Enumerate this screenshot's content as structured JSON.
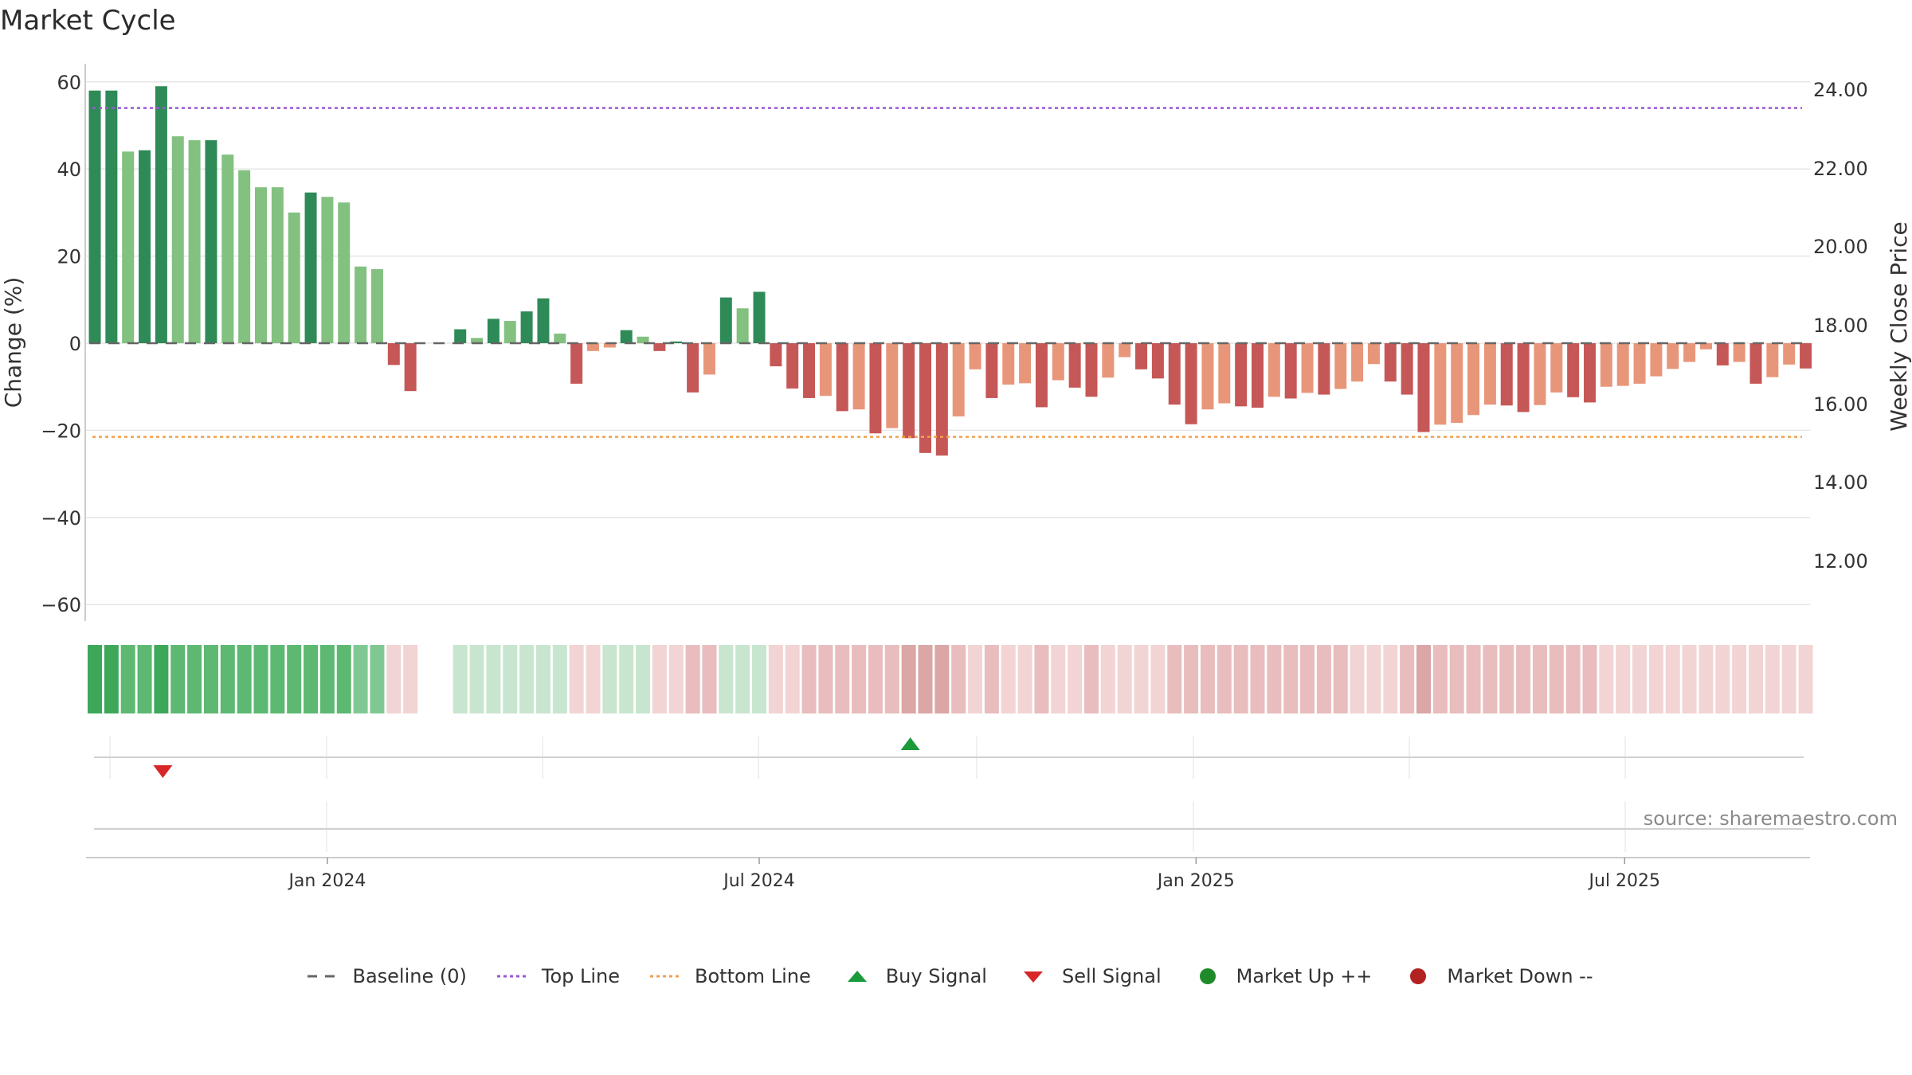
{
  "title": "Market Cycle",
  "source": "source: sharemaestro.com",
  "colors": {
    "green_dark": "#2e8b57",
    "green_light": "#82c17f",
    "red_dark": "#c65757",
    "red_light": "#e8967a",
    "top_line": "#9b59d0",
    "bottom_line": "#f0a050",
    "baseline": "#666666",
    "buy": "#1a9a3a",
    "sell": "#d62828",
    "market_up": "#1f8a2a",
    "market_down": "#b22222"
  },
  "legend": [
    {
      "label": "Baseline (0)",
      "kind": "dash",
      "color": "#666666"
    },
    {
      "label": "Top Line",
      "kind": "dotted",
      "color": "#9b59d0"
    },
    {
      "label": "Bottom Line",
      "kind": "dotted",
      "color": "#f0a050"
    },
    {
      "label": "Buy Signal",
      "kind": "tri-up",
      "color": "#1a9a3a"
    },
    {
      "label": "Sell Signal",
      "kind": "tri-down",
      "color": "#d62828"
    },
    {
      "label": "Market Up ++",
      "kind": "dot",
      "color": "#1f8a2a"
    },
    {
      "label": "Market Down --",
      "kind": "dot",
      "color": "#b22222"
    }
  ],
  "chart_data": {
    "type": "bar",
    "ylabel": "Change (%)",
    "ylabel_right": "Weekly Close Price",
    "ylim": [
      -62,
      64
    ],
    "y_ticks": [
      60,
      40,
      20,
      0,
      -20,
      -40,
      -60
    ],
    "y_tick_labels": [
      "60",
      "40",
      "20",
      "0",
      "−20",
      "−40",
      "−60"
    ],
    "right_ticks": [
      "24.00",
      "22.00",
      "20.00",
      "18.00",
      "16.00",
      "14.00",
      "12.00"
    ],
    "top_line": 54,
    "bottom_line": -21.5,
    "x_ticks": [
      {
        "label": "Jan 2024",
        "week": 14
      },
      {
        "label": "Jul 2024",
        "week": 40
      },
      {
        "label": "Jan 2025",
        "week": 66.3
      },
      {
        "label": "Jul 2025",
        "week": 92.1
      }
    ],
    "values": [
      58,
      58,
      44,
      44.3,
      59,
      47.5,
      46.6,
      46.6,
      43.3,
      39.7,
      35.8,
      35.8,
      30,
      34.6,
      33.6,
      32.3,
      17.6,
      17,
      -5,
      -11,
      0,
      0,
      3.2,
      1.2,
      5.6,
      5.1,
      7.3,
      10.3,
      2.2,
      -9.3,
      -1.8,
      -1,
      3,
      1.5,
      -1.8,
      0.4,
      -11.3,
      -7.2,
      10.5,
      8,
      11.8,
      -5.3,
      -10.4,
      -12.6,
      -12.1,
      -15.6,
      -15.2,
      -20.7,
      -19.5,
      -21.8,
      -25.2,
      -25.8,
      -16.8,
      -6,
      -12.6,
      -9.5,
      -9.2,
      -14.7,
      -8.5,
      -10.2,
      -12.3,
      -7.9,
      -3.2,
      -6,
      -8.1,
      -14.1,
      -18.6,
      -15.2,
      -13.8,
      -14.5,
      -14.8,
      -12.3,
      -12.7,
      -11.4,
      -11.8,
      -10.5,
      -8.8,
      -4.8,
      -8.8,
      -11.8,
      -20.4,
      -18.7,
      -18.3,
      -16.5,
      -14.1,
      -14.3,
      -15.8,
      -14.2,
      -11.3,
      -12.4,
      -13.6,
      -10,
      -9.8,
      -9.3,
      -7.6,
      -5.9,
      -4.3,
      -1.4,
      -5.1,
      -4.3,
      -9.3,
      -7.8,
      -4.9,
      -5.8
    ],
    "strength": [
      "s",
      "s",
      "w",
      "s",
      "s",
      "w",
      "w",
      "s",
      "w",
      "w",
      "w",
      "w",
      "w",
      "s",
      "w",
      "w",
      "w",
      "w",
      "s",
      "s",
      "n",
      "n",
      "s",
      "w",
      "s",
      "w",
      "s",
      "s",
      "w",
      "s",
      "w",
      "w",
      "s",
      "w",
      "s",
      "s",
      "s",
      "w",
      "s",
      "w",
      "s",
      "s",
      "s",
      "s",
      "w",
      "s",
      "w",
      "s",
      "w",
      "s",
      "s",
      "s",
      "w",
      "w",
      "s",
      "w",
      "w",
      "s",
      "w",
      "s",
      "s",
      "w",
      "w",
      "s",
      "s",
      "s",
      "s",
      "w",
      "w",
      "s",
      "s",
      "w",
      "s",
      "w",
      "s",
      "w",
      "w",
      "w",
      "s",
      "s",
      "s",
      "w",
      "w",
      "w",
      "w",
      "s",
      "s",
      "w",
      "w",
      "s",
      "s",
      "w",
      "w",
      "w",
      "w",
      "w",
      "w",
      "w",
      "s",
      "w",
      "s",
      "w",
      "w",
      "s"
    ],
    "regime_strip": [
      "g3",
      "g3",
      "g2",
      "g2",
      "g3",
      "g2",
      "g2",
      "g2",
      "g2",
      "g2",
      "g2",
      "g2",
      "g2",
      "g2",
      "g2",
      "g2",
      "g1",
      "g1",
      "r0",
      "r0",
      "x",
      "x",
      "g0",
      "g0",
      "g0",
      "g0",
      "g0",
      "g0",
      "g0",
      "r0",
      "r0",
      "g0",
      "g0",
      "g0",
      "r0",
      "r0",
      "r1",
      "r1",
      "g0",
      "g0",
      "g0",
      "r0",
      "r0",
      "r1",
      "r1",
      "r1",
      "r1",
      "r1",
      "r1",
      "r2",
      "r2",
      "r2",
      "r1",
      "r0",
      "r1",
      "r0",
      "r0",
      "r1",
      "r0",
      "r0",
      "r1",
      "r0",
      "r0",
      "r0",
      "r0",
      "r1",
      "r1",
      "r1",
      "r1",
      "r1",
      "r1",
      "r1",
      "r1",
      "r1",
      "r1",
      "r1",
      "r0",
      "r0",
      "r0",
      "r1",
      "r2",
      "r1",
      "r1",
      "r1",
      "r1",
      "r1",
      "r1",
      "r1",
      "r1",
      "r1",
      "r1",
      "r0",
      "r0",
      "r0",
      "r0",
      "r0",
      "r0",
      "r0",
      "r0",
      "r0",
      "r0",
      "r0",
      "r0",
      "r0"
    ],
    "buy_signals": [
      49
    ],
    "sell_signals": [
      4
    ]
  }
}
